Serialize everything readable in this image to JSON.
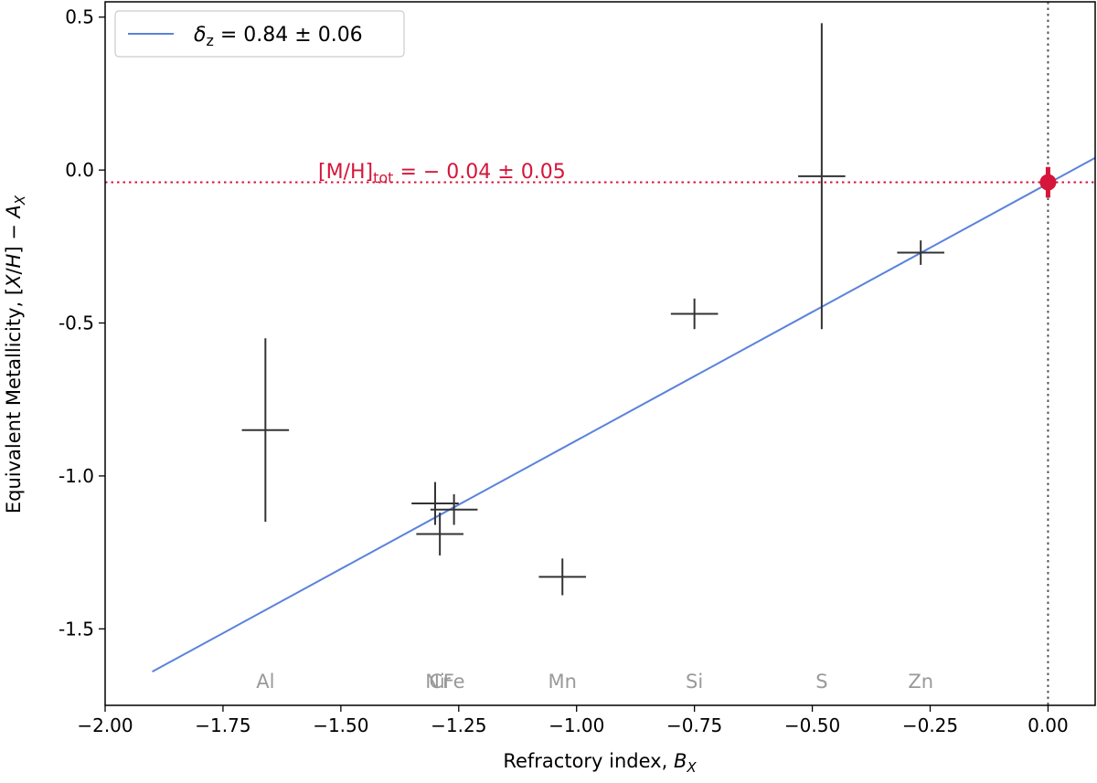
{
  "chart_data": {
    "type": "scatter",
    "xlabel": {
      "text": "Refractory index, ",
      "var": "B",
      "sub": "X"
    },
    "ylabel": {
      "text": "Equivalent Metallicity, [",
      "var1": "X",
      "mid": "/",
      "var2": "H",
      "end": "] − ",
      "var3": "A",
      "sub": "X"
    },
    "xlim": [
      -2.0,
      0.1
    ],
    "ylim": [
      -1.75,
      0.55
    ],
    "xticks": [
      -2.0,
      -1.75,
      -1.5,
      -1.25,
      -1.0,
      -0.75,
      -0.5,
      -0.25,
      0.0
    ],
    "xtick_labels": [
      "−2.00",
      "−1.75",
      "−1.50",
      "−1.25",
      "−1.00",
      "−0.75",
      "−0.50",
      "−0.25",
      "0.00"
    ],
    "yticks": [
      0.5,
      0.0,
      -0.5,
      -1.0,
      -1.5
    ],
    "ytick_labels": [
      "0.5",
      "0.0",
      "-0.5",
      "-1.0",
      "-1.5"
    ],
    "grid": false,
    "legend_position": "top-left",
    "legend": {
      "label_prefix": "δ",
      "label_sub": "z",
      "label_value": " = 0.84 ± 0.06",
      "color": "#5b82dc"
    },
    "fit_line": {
      "x": [
        -1.9,
        0.1
      ],
      "y": [
        -1.64,
        0.04
      ],
      "color": "#5b82dc"
    },
    "element_label_y": -1.67,
    "points": [
      {
        "element": "Al",
        "x": -1.66,
        "y": -0.85,
        "xerr": 0.05,
        "yerr": 0.3
      },
      {
        "element": "Ni",
        "x": -1.3,
        "y": -1.09,
        "xerr": 0.05,
        "yerr": 0.07
      },
      {
        "element": "Cr",
        "x": -1.29,
        "y": -1.19,
        "xerr": 0.05,
        "yerr": 0.07
      },
      {
        "element": "Fe",
        "x": -1.26,
        "y": -1.11,
        "xerr": 0.05,
        "yerr": 0.05
      },
      {
        "element": "Mn",
        "x": -1.03,
        "y": -1.33,
        "xerr": 0.05,
        "yerr": 0.06
      },
      {
        "element": "Si",
        "x": -0.75,
        "y": -0.47,
        "xerr": 0.05,
        "yerr": 0.05
      },
      {
        "element": "S",
        "x": -0.48,
        "y": -0.02,
        "xerr": 0.05,
        "yerr": 0.5
      },
      {
        "element": "Zn",
        "x": -0.27,
        "y": -0.27,
        "xerr": 0.05,
        "yerr": 0.04
      }
    ],
    "point_color": "#333333",
    "metallicity": {
      "label_prefix": "[M/H]",
      "label_sub": "tot",
      "label_value": " = − 0.04 ± 0.05",
      "x": 0.0,
      "y": -0.04,
      "yerr": 0.05,
      "color": "#d6153a"
    },
    "vline_x": 0.0
  }
}
